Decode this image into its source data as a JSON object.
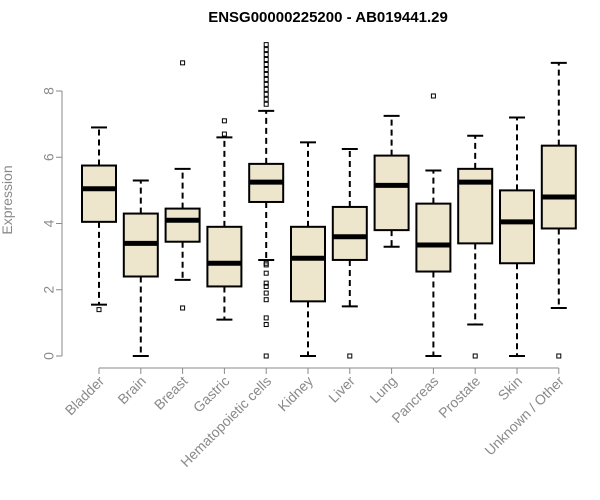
{
  "chart_data": {
    "type": "boxplot",
    "title": "ENSG00000225200 - AB019441.29",
    "xlabel": "",
    "ylabel": "Expression",
    "ylim": [
      0,
      9.6
    ],
    "yticks": [
      0,
      2,
      4,
      6,
      8
    ],
    "grid": false,
    "legend": "none",
    "box_fill": "#ede6cc",
    "categories": [
      "Bladder",
      "Brain",
      "Breast",
      "Gastric",
      "Hematopoietic cells",
      "Kidney",
      "Liver",
      "Lung",
      "Pancreas",
      "Prostate",
      "Skin",
      "Unknown / Other"
    ],
    "boxes": [
      {
        "whisker_low": 1.55,
        "q1": 4.05,
        "median": 5.05,
        "q3": 5.75,
        "whisker_high": 6.9,
        "outliers": [
          1.4
        ]
      },
      {
        "whisker_low": 0.0,
        "q1": 2.4,
        "median": 3.4,
        "q3": 4.3,
        "whisker_high": 5.3,
        "outliers": []
      },
      {
        "whisker_low": 2.3,
        "q1": 3.45,
        "median": 4.1,
        "q3": 4.45,
        "whisker_high": 5.65,
        "outliers": [
          1.45,
          8.85
        ]
      },
      {
        "whisker_low": 1.1,
        "q1": 2.1,
        "median": 2.8,
        "q3": 3.9,
        "whisker_high": 6.6,
        "outliers": [
          6.7,
          7.1
        ]
      },
      {
        "whisker_low": 2.9,
        "q1": 4.65,
        "median": 5.25,
        "q3": 5.8,
        "whisker_high": 7.4,
        "outliers": [
          0.0,
          0.95,
          1.15,
          1.7,
          1.9,
          2.1,
          2.2,
          2.5,
          2.75,
          2.8,
          7.6,
          7.75,
          7.9,
          8.05,
          8.2,
          8.35,
          8.5,
          8.65,
          8.8,
          8.95,
          9.1,
          9.25,
          9.4
        ]
      },
      {
        "whisker_low": 0.0,
        "q1": 1.65,
        "median": 2.95,
        "q3": 3.9,
        "whisker_high": 6.45,
        "outliers": []
      },
      {
        "whisker_low": 1.5,
        "q1": 2.9,
        "median": 3.6,
        "q3": 4.5,
        "whisker_high": 6.25,
        "outliers": [
          0.0
        ]
      },
      {
        "whisker_low": 3.3,
        "q1": 3.8,
        "median": 5.15,
        "q3": 6.05,
        "whisker_high": 7.25,
        "outliers": []
      },
      {
        "whisker_low": 0.0,
        "q1": 2.55,
        "median": 3.35,
        "q3": 4.6,
        "whisker_high": 5.6,
        "outliers": [
          7.85
        ]
      },
      {
        "whisker_low": 0.95,
        "q1": 3.4,
        "median": 5.25,
        "q3": 5.65,
        "whisker_high": 6.65,
        "outliers": [
          0.0
        ]
      },
      {
        "whisker_low": 0.0,
        "q1": 2.8,
        "median": 4.05,
        "q3": 5.0,
        "whisker_high": 7.2,
        "outliers": []
      },
      {
        "whisker_low": 1.45,
        "q1": 3.85,
        "median": 4.8,
        "q3": 6.35,
        "whisker_high": 8.85,
        "outliers": [
          0.0
        ]
      }
    ]
  }
}
